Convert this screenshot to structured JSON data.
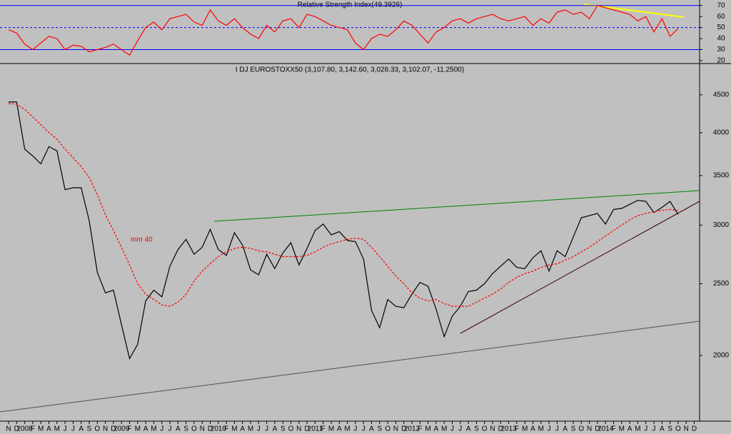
{
  "chart_data": [
    {
      "type": "line",
      "title": "Relative Strength Index(49.3926)",
      "series": [
        {
          "name": "RSI",
          "color": "#ff0000",
          "values": [
            48,
            45,
            35,
            30,
            36,
            42,
            40,
            30,
            34,
            33,
            28,
            30,
            32,
            35,
            30,
            25,
            38,
            50,
            55,
            48,
            58,
            60,
            62,
            55,
            52,
            66,
            56,
            52,
            58,
            50,
            44,
            40,
            52,
            46,
            56,
            58,
            50,
            62,
            60,
            56,
            52,
            50,
            48,
            36,
            30,
            40,
            44,
            42,
            48,
            56,
            52,
            44,
            36,
            46,
            50,
            56,
            58,
            54,
            58,
            60,
            62,
            58,
            56,
            58,
            60,
            52,
            58,
            54,
            64,
            66,
            62,
            64,
            58,
            70,
            68,
            66,
            64,
            62,
            56,
            60,
            46,
            58,
            42,
            49,
            null,
            null
          ]
        }
      ],
      "ylim": [
        18,
        75
      ],
      "yticks": [
        20,
        30,
        40,
        50,
        60,
        70
      ],
      "levels": [
        30,
        50,
        70
      ]
    },
    {
      "type": "line",
      "title": "I DJ EUROSTOXX50 (3,107.80, 3,142.60, 3,028.33, 3,102.07, -11.2500)",
      "annotation": "mm 40",
      "log_scale": true,
      "categories": [
        "N",
        "D",
        "2008",
        "F",
        "M",
        "A",
        "M",
        "J",
        "J",
        "A",
        "S",
        "O",
        "N",
        "D",
        "2009",
        "F",
        "M",
        "A",
        "M",
        "J",
        "J",
        "A",
        "S",
        "O",
        "N",
        "D",
        "2010",
        "F",
        "M",
        "A",
        "M",
        "J",
        "J",
        "A",
        "S",
        "O",
        "N",
        "D",
        "2011",
        "F",
        "M",
        "A",
        "M",
        "J",
        "J",
        "A",
        "S",
        "O",
        "N",
        "D",
        "2012",
        "F",
        "M",
        "A",
        "M",
        "J",
        "J",
        "A",
        "S",
        "O",
        "N",
        "D",
        "2013",
        "F",
        "M",
        "A",
        "M",
        "J",
        "J",
        "A",
        "S",
        "O",
        "N",
        "D",
        "2014",
        "F",
        "M",
        "A",
        "M",
        "J",
        "J",
        "A",
        "S",
        "O",
        "N",
        "D"
      ],
      "series": [
        {
          "name": "EUROSTOXX50",
          "color": "#000000",
          "values": [
            4400,
            4400,
            3800,
            3720,
            3630,
            3830,
            3780,
            3350,
            3370,
            3370,
            3040,
            2590,
            2430,
            2450,
            2200,
            1980,
            2070,
            2370,
            2450,
            2400,
            2640,
            2780,
            2870,
            2740,
            2800,
            2960,
            2780,
            2730,
            2930,
            2820,
            2610,
            2570,
            2740,
            2620,
            2750,
            2840,
            2650,
            2790,
            2950,
            3010,
            2910,
            2940,
            2860,
            2850,
            2700,
            2300,
            2180,
            2380,
            2330,
            2320,
            2420,
            2510,
            2480,
            2310,
            2120,
            2260,
            2330,
            2440,
            2450,
            2500,
            2580,
            2640,
            2700,
            2630,
            2620,
            2710,
            2770,
            2600,
            2770,
            2720,
            2890,
            3070,
            3090,
            3110,
            3010,
            3150,
            3160,
            3200,
            3240,
            3230,
            3120,
            3170,
            3230,
            3100,
            null,
            null
          ]
        },
        {
          "name": "mm 40",
          "color": "#ff0000",
          "values": [
            4380,
            4370,
            4300,
            4200,
            4100,
            4000,
            3920,
            3800,
            3700,
            3600,
            3480,
            3300,
            3100,
            2950,
            2800,
            2650,
            2500,
            2420,
            2380,
            2340,
            2330,
            2360,
            2420,
            2520,
            2600,
            2660,
            2720,
            2760,
            2790,
            2800,
            2790,
            2770,
            2760,
            2740,
            2720,
            2720,
            2720,
            2730,
            2760,
            2800,
            2830,
            2850,
            2870,
            2880,
            2870,
            2800,
            2720,
            2640,
            2560,
            2500,
            2430,
            2390,
            2370,
            2380,
            2350,
            2330,
            2330,
            2330,
            2360,
            2390,
            2420,
            2460,
            2510,
            2550,
            2580,
            2600,
            2630,
            2650,
            2660,
            2690,
            2720,
            2760,
            2800,
            2850,
            2900,
            2950,
            3000,
            3050,
            3090,
            3110,
            3130,
            3140,
            3150,
            3140,
            null,
            null
          ]
        }
      ],
      "ylim": [
        1630,
        4960
      ],
      "yticks": [
        2000,
        2500,
        3000,
        3500,
        4000,
        4500
      ]
    }
  ]
}
